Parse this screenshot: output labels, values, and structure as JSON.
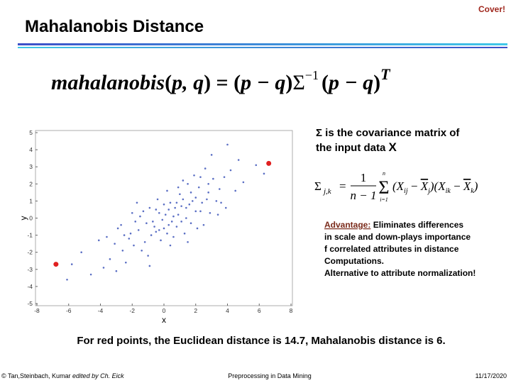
{
  "header": {
    "title": "Mahalanobis Distance",
    "cover": "Cover!"
  },
  "formula": {
    "main": [
      "mahalanobis",
      "(",
      "p, q",
      ") = (",
      "p − q",
      ")",
      "Σ",
      "−1",
      "(",
      "p − q",
      ")",
      "T"
    ]
  },
  "chart_data": {
    "type": "scatter",
    "xlabel": "x",
    "ylabel": "y",
    "xlim": [
      -8,
      8
    ],
    "xticks": [
      -8,
      -6,
      -4,
      -2,
      0,
      2,
      4,
      6,
      8
    ],
    "ylim": [
      -5,
      5
    ],
    "yticks": [
      -5,
      -4,
      -3,
      -2,
      -1,
      0,
      1,
      2,
      3,
      4,
      5
    ],
    "series": [
      {
        "color": "#5b6fc4",
        "x": [
          -0.5,
          1.2,
          2.3,
          -1.8,
          0.4,
          3.1,
          -2.6,
          1.7,
          -0.9,
          0.0,
          2.8,
          -3.4,
          0.9,
          1.5,
          -1.2,
          4.2,
          -0.3,
          2.0,
          -2.1,
          0.6,
          3.6,
          -1.5,
          1.1,
          -4.1,
          0.2,
          2.5,
          -0.7,
          1.9,
          -2.9,
          0.8,
          5.0,
          -1.0,
          1.4,
          -3.8,
          0.3,
          2.2,
          -0.2,
          3.3,
          -2.4,
          1.0,
          4.7,
          -1.3,
          0.5,
          2.9,
          -5.2,
          1.6,
          -0.6,
          3.8,
          -1.9,
          0.1,
          2.6,
          -2.7,
          1.3,
          -0.4,
          4.5,
          -3.1,
          0.7,
          2.1,
          -1.6,
          1.8,
          5.8,
          -0.8,
          0.4,
          3.0,
          -2.2,
          1.2,
          -4.6,
          2.4,
          -1.1,
          0.9,
          3.5,
          -0.1,
          1.7,
          -3.6,
          0.6,
          2.7,
          -1.4,
          6.3,
          -2.0,
          0.0,
          1.5,
          -5.8,
          2.3,
          -0.9,
          3.9,
          -2.5,
          0.8,
          1.1,
          -0.3,
          4.0,
          -1.7,
          2.0,
          -3.0,
          0.3,
          2.8,
          -0.5,
          1.4,
          -6.1,
          0.2,
          3.4
        ],
        "y": [
          -0.8,
          1.1,
          0.4,
          -0.2,
          0.9,
          2.3,
          -1.9,
          -0.3,
          0.6,
          -0.6,
          1.5,
          -2.4,
          0.2,
          2.0,
          -1.4,
          2.8,
          0.3,
          1.2,
          -0.9,
          -1.1,
          0.9,
          0.1,
          0.7,
          -1.3,
          1.6,
          -0.4,
          -0.2,
          2.5,
          -0.6,
          -0.5,
          2.1,
          -2.2,
          0.0,
          -2.9,
          0.5,
          1.8,
          -1.3,
          1.0,
          -2.6,
          1.4,
          3.4,
          0.4,
          -0.2,
          0.3,
          -2.0,
          0.8,
          -0.5,
          2.4,
          -1.6,
          0.2,
          2.9,
          -0.4,
          -0.9,
          1.1,
          1.6,
          -1.5,
          0.6,
          -0.6,
          -0.7,
          1.0,
          3.1,
          -1.0,
          -1.6,
          3.7,
          -1.2,
          2.2,
          -3.3,
          0.9,
          -0.3,
          1.8,
          1.7,
          -0.1,
          1.5,
          -1.1,
          0.1,
          1.1,
          -1.9,
          2.6,
          0.3,
          0.8,
          -1.4,
          -2.7,
          2.4,
          -2.8,
          0.6,
          -1.0,
          0.9,
          -0.2,
          -0.7,
          4.3,
          0.9,
          0.4,
          -3.1,
          -0.4,
          2.0,
          0.5,
          0.6,
          -3.6,
          -0.9,
          0.2
        ]
      },
      {
        "color": "#e02020",
        "x": [
          -6.8,
          6.6
        ],
        "y": [
          -2.7,
          3.2
        ]
      }
    ]
  },
  "covariance": {
    "text": [
      "Σ is the covariance matrix of",
      "the input data",
      "X"
    ],
    "formula": [
      "Σ",
      "j,k",
      "=",
      "1",
      "n − 1",
      "Σ",
      "n",
      "i=1",
      "(X",
      "ij",
      " − ",
      "X",
      "j",
      ")(X",
      "ik",
      " − ",
      "X",
      "k",
      ")"
    ]
  },
  "advantage": {
    "label": "Advantage:",
    "lines": [
      "Eliminates differences",
      "in scale and down-plays importance",
      "f correlated attributes in distance",
      "Computations.",
      "Alternative to attribute normalization!"
    ]
  },
  "conclusion": "For red points, the Euclidean distance is 14.7, Mahalanobis distance is 6.",
  "footer": {
    "authors": "© Tan,Steinbach, Kumar",
    "editor": "edited by Ch. Eick",
    "course": "Preprocessing in Data Mining",
    "date": "11/17/2020"
  }
}
